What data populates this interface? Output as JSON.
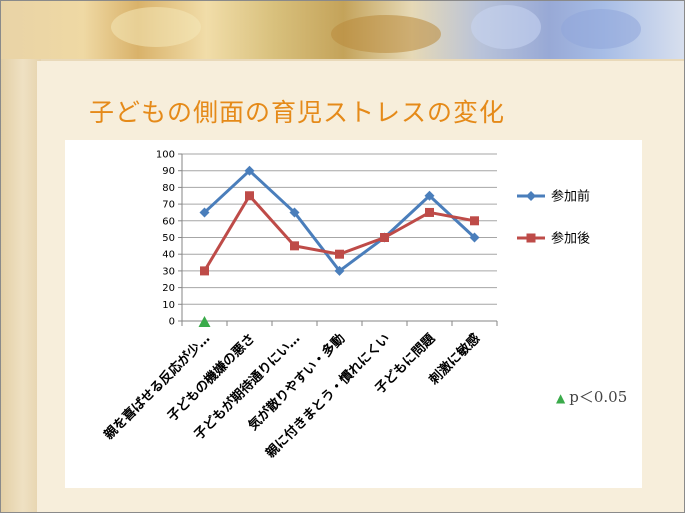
{
  "slide": {
    "title": "子どもの側面の育児ストレスの変化"
  },
  "colors": {
    "title": "#e58a19",
    "series_before": "#4a7ebb",
    "series_after": "#be4b48",
    "significance_marker": "#3aaa4a"
  },
  "note": {
    "marker_icon": "triangle-icon",
    "text": "p＜0.05"
  },
  "chart_data": {
    "type": "line",
    "title": "",
    "xlabel": "",
    "ylabel": "",
    "ylim": [
      0,
      100
    ],
    "yticks": [
      "0",
      "10",
      "20",
      "30",
      "40",
      "50",
      "60",
      "70",
      "80",
      "90",
      "100"
    ],
    "grid": true,
    "legend_position": "right",
    "categories": [
      "親を喜ばせる反応が少…",
      "子どもの機嫌の悪さ",
      "子どもが期待通りにい…",
      "気が散りやすい・多動",
      "親に付きまとう・慣れにくい",
      "子どもに問題",
      "刺激に敏感"
    ],
    "series": [
      {
        "name": "参加前",
        "values": [
          65,
          90,
          65,
          30,
          50,
          75,
          50
        ],
        "color": "#4a7ebb",
        "marker": "diamond"
      },
      {
        "name": "参加後",
        "values": [
          30,
          75,
          45,
          40,
          50,
          65,
          60
        ],
        "color": "#be4b48",
        "marker": "square"
      }
    ],
    "significant_categories": [
      0
    ]
  }
}
